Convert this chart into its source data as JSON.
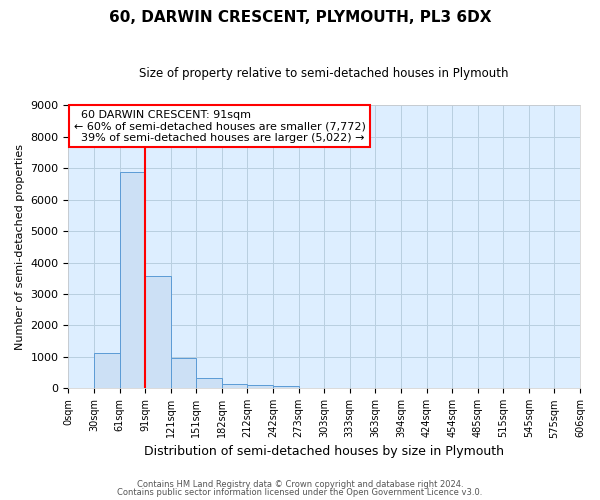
{
  "title": "60, DARWIN CRESCENT, PLYMOUTH, PL3 6DX",
  "subtitle": "Size of property relative to semi-detached houses in Plymouth",
  "xlabel": "Distribution of semi-detached houses by size in Plymouth",
  "ylabel": "Number of semi-detached properties",
  "bin_labels": [
    "0sqm",
    "30sqm",
    "61sqm",
    "91sqm",
    "121sqm",
    "151sqm",
    "182sqm",
    "212sqm",
    "242sqm",
    "273sqm",
    "303sqm",
    "333sqm",
    "363sqm",
    "394sqm",
    "424sqm",
    "454sqm",
    "485sqm",
    "515sqm",
    "545sqm",
    "575sqm",
    "606sqm"
  ],
  "bar_values": [
    0,
    1120,
    6870,
    3560,
    970,
    340,
    150,
    110,
    90,
    0,
    0,
    0,
    0,
    0,
    0,
    0,
    0,
    0,
    0,
    0
  ],
  "bar_color": "#cce0f5",
  "bar_edge_color": "#5b9bd5",
  "vline_index": 3,
  "vline_color": "red",
  "pct_smaller": 60,
  "pct_larger": 39,
  "n_smaller": "7,772",
  "n_larger": "5,022",
  "annotation_title": "60 DARWIN CRESCENT: 91sqm",
  "ylim": [
    0,
    9000
  ],
  "yticks": [
    0,
    1000,
    2000,
    3000,
    4000,
    5000,
    6000,
    7000,
    8000,
    9000
  ],
  "footer1": "Contains HM Land Registry data © Crown copyright and database right 2024.",
  "footer2": "Contains public sector information licensed under the Open Government Licence v3.0.",
  "fig_bg_color": "#ffffff",
  "plot_bg_color": "#ddeeff",
  "grid_color": "#b8cfe0"
}
